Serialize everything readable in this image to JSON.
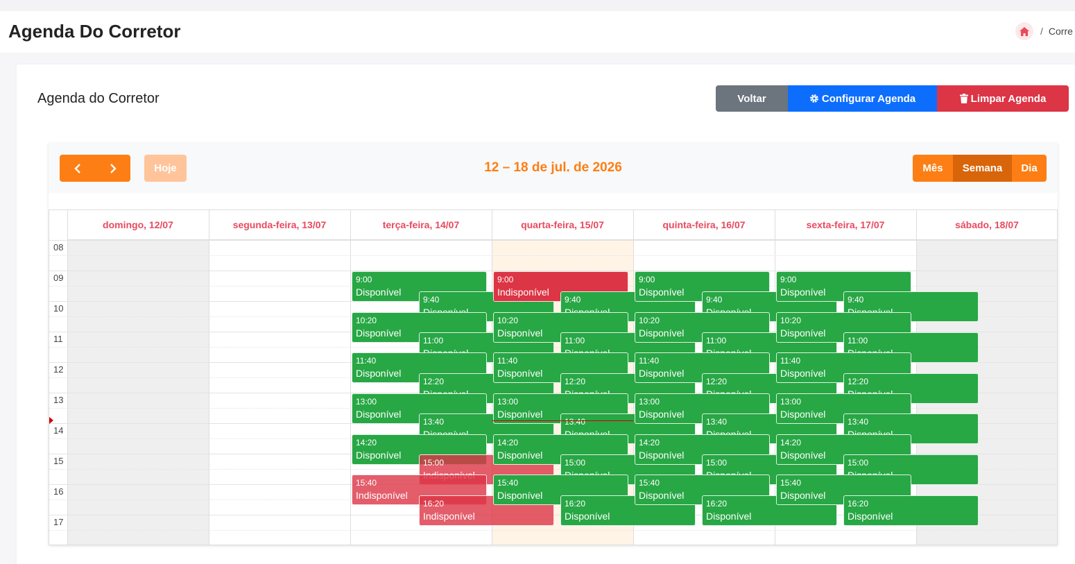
{
  "page": {
    "title": "Agenda Do Corretor",
    "breadcrumb_current": "Corre"
  },
  "card": {
    "title": "Agenda do Corretor",
    "buttons": {
      "back": "Voltar",
      "configure": "Configurar Agenda",
      "clear": "Limpar Agenda"
    }
  },
  "calendar": {
    "today_label": "Hoje",
    "range_title": "12 – 18 de jul. de 2026",
    "views": [
      "Mês",
      "Semana",
      "Dia"
    ],
    "active_view": "Semana",
    "days": [
      {
        "label": "domingo, 12/07",
        "state": "unavailable"
      },
      {
        "label": "segunda-feira, 13/07",
        "state": "normal"
      },
      {
        "label": "terça-feira, 14/07",
        "state": "normal"
      },
      {
        "label": "quarta-feira, 15/07",
        "state": "today"
      },
      {
        "label": "quinta-feira, 16/07",
        "state": "normal"
      },
      {
        "label": "sexta-feira, 17/07",
        "state": "normal"
      },
      {
        "label": "sábado, 18/07",
        "state": "unavailable"
      }
    ],
    "hours": [
      "08",
      "09",
      "10",
      "11",
      "12",
      "13",
      "14",
      "15",
      "16",
      "17"
    ],
    "now_time": "13:55",
    "colors": {
      "available": "#28a745",
      "unavailable": "#dc3545",
      "accent": "#fd7e14",
      "today_bg": "#fff4e6"
    },
    "events": [
      {
        "day": 2,
        "time": "9:00",
        "status": "Disponível",
        "start": "09:00",
        "column": 0,
        "tone": "green"
      },
      {
        "day": 2,
        "time": "9:40",
        "status": "Disponível",
        "start": "09:40",
        "column": 1,
        "tone": "green"
      },
      {
        "day": 2,
        "time": "10:20",
        "status": "Disponível",
        "start": "10:20",
        "column": 0,
        "tone": "green"
      },
      {
        "day": 2,
        "time": "11:00",
        "status": "Disponível",
        "start": "11:00",
        "column": 1,
        "tone": "green"
      },
      {
        "day": 2,
        "time": "11:40",
        "status": "Disponível",
        "start": "11:40",
        "column": 0,
        "tone": "green"
      },
      {
        "day": 2,
        "time": "12:20",
        "status": "Disponível",
        "start": "12:20",
        "column": 1,
        "tone": "green"
      },
      {
        "day": 2,
        "time": "13:00",
        "status": "Disponível",
        "start": "13:00",
        "column": 0,
        "tone": "green"
      },
      {
        "day": 2,
        "time": "13:40",
        "status": "Disponível",
        "start": "13:40",
        "column": 1,
        "tone": "green"
      },
      {
        "day": 2,
        "time": "14:20",
        "status": "Disponível",
        "start": "14:20",
        "column": 0,
        "tone": "green"
      },
      {
        "day": 2,
        "time": "15:00",
        "status": "Indisponível",
        "start": "15:00",
        "column": 1,
        "tone": "red-light"
      },
      {
        "day": 2,
        "time": "15:40",
        "status": "Indisponível",
        "start": "15:40",
        "column": 0,
        "tone": "red-light"
      },
      {
        "day": 2,
        "time": "16:20",
        "status": "Indisponível",
        "start": "16:20",
        "column": 1,
        "tone": "red-light"
      },
      {
        "day": 3,
        "time": "9:00",
        "status": "Indisponível",
        "start": "09:00",
        "column": 0,
        "tone": "red"
      },
      {
        "day": 3,
        "time": "9:40",
        "status": "Disponível",
        "start": "09:40",
        "column": 1,
        "tone": "green"
      },
      {
        "day": 3,
        "time": "10:20",
        "status": "Disponível",
        "start": "10:20",
        "column": 0,
        "tone": "green"
      },
      {
        "day": 3,
        "time": "11:00",
        "status": "Disponível",
        "start": "11:00",
        "column": 1,
        "tone": "green"
      },
      {
        "day": 3,
        "time": "11:40",
        "status": "Disponível",
        "start": "11:40",
        "column": 0,
        "tone": "green"
      },
      {
        "day": 3,
        "time": "12:20",
        "status": "Disponível",
        "start": "12:20",
        "column": 1,
        "tone": "green"
      },
      {
        "day": 3,
        "time": "13:00",
        "status": "Disponível",
        "start": "13:00",
        "column": 0,
        "tone": "green"
      },
      {
        "day": 3,
        "time": "13:40",
        "status": "Disponível",
        "start": "13:40",
        "column": 1,
        "tone": "green"
      },
      {
        "day": 3,
        "time": "14:20",
        "status": "Disponível",
        "start": "14:20",
        "column": 0,
        "tone": "green"
      },
      {
        "day": 3,
        "time": "15:00",
        "status": "Disponível",
        "start": "15:00",
        "column": 1,
        "tone": "green"
      },
      {
        "day": 3,
        "time": "15:40",
        "status": "Disponível",
        "start": "15:40",
        "column": 0,
        "tone": "green"
      },
      {
        "day": 3,
        "time": "16:20",
        "status": "Disponível",
        "start": "16:20",
        "column": 1,
        "tone": "green"
      },
      {
        "day": 4,
        "time": "9:00",
        "status": "Disponível",
        "start": "09:00",
        "column": 0,
        "tone": "green"
      },
      {
        "day": 4,
        "time": "9:40",
        "status": "Disponível",
        "start": "09:40",
        "column": 1,
        "tone": "green"
      },
      {
        "day": 4,
        "time": "10:20",
        "status": "Disponível",
        "start": "10:20",
        "column": 0,
        "tone": "green"
      },
      {
        "day": 4,
        "time": "11:00",
        "status": "Disponível",
        "start": "11:00",
        "column": 1,
        "tone": "green"
      },
      {
        "day": 4,
        "time": "11:40",
        "status": "Disponível",
        "start": "11:40",
        "column": 0,
        "tone": "green"
      },
      {
        "day": 4,
        "time": "12:20",
        "status": "Disponível",
        "start": "12:20",
        "column": 1,
        "tone": "green"
      },
      {
        "day": 4,
        "time": "13:00",
        "status": "Disponível",
        "start": "13:00",
        "column": 0,
        "tone": "green"
      },
      {
        "day": 4,
        "time": "13:40",
        "status": "Disponível",
        "start": "13:40",
        "column": 1,
        "tone": "green"
      },
      {
        "day": 4,
        "time": "14:20",
        "status": "Disponível",
        "start": "14:20",
        "column": 0,
        "tone": "green"
      },
      {
        "day": 4,
        "time": "15:00",
        "status": "Disponível",
        "start": "15:00",
        "column": 1,
        "tone": "green"
      },
      {
        "day": 4,
        "time": "15:40",
        "status": "Disponível",
        "start": "15:40",
        "column": 0,
        "tone": "green"
      },
      {
        "day": 4,
        "time": "16:20",
        "status": "Disponível",
        "start": "16:20",
        "column": 1,
        "tone": "green"
      },
      {
        "day": 5,
        "time": "9:00",
        "status": "Disponível",
        "start": "09:00",
        "column": 0,
        "tone": "green"
      },
      {
        "day": 5,
        "time": "9:40",
        "status": "Disponível",
        "start": "09:40",
        "column": 1,
        "tone": "green"
      },
      {
        "day": 5,
        "time": "10:20",
        "status": "Disponível",
        "start": "10:20",
        "column": 0,
        "tone": "green"
      },
      {
        "day": 5,
        "time": "11:00",
        "status": "Disponível",
        "start": "11:00",
        "column": 1,
        "tone": "green"
      },
      {
        "day": 5,
        "time": "11:40",
        "status": "Disponível",
        "start": "11:40",
        "column": 0,
        "tone": "green"
      },
      {
        "day": 5,
        "time": "12:20",
        "status": "Disponível",
        "start": "12:20",
        "column": 1,
        "tone": "green"
      },
      {
        "day": 5,
        "time": "13:00",
        "status": "Disponível",
        "start": "13:00",
        "column": 0,
        "tone": "green"
      },
      {
        "day": 5,
        "time": "13:40",
        "status": "Disponível",
        "start": "13:40",
        "column": 1,
        "tone": "green"
      },
      {
        "day": 5,
        "time": "14:20",
        "status": "Disponível",
        "start": "14:20",
        "column": 0,
        "tone": "green"
      },
      {
        "day": 5,
        "time": "15:00",
        "status": "Disponível",
        "start": "15:00",
        "column": 1,
        "tone": "green"
      },
      {
        "day": 5,
        "time": "15:40",
        "status": "Disponível",
        "start": "15:40",
        "column": 0,
        "tone": "green"
      },
      {
        "day": 5,
        "time": "16:20",
        "status": "Disponível",
        "start": "16:20",
        "column": 1,
        "tone": "green"
      }
    ]
  }
}
